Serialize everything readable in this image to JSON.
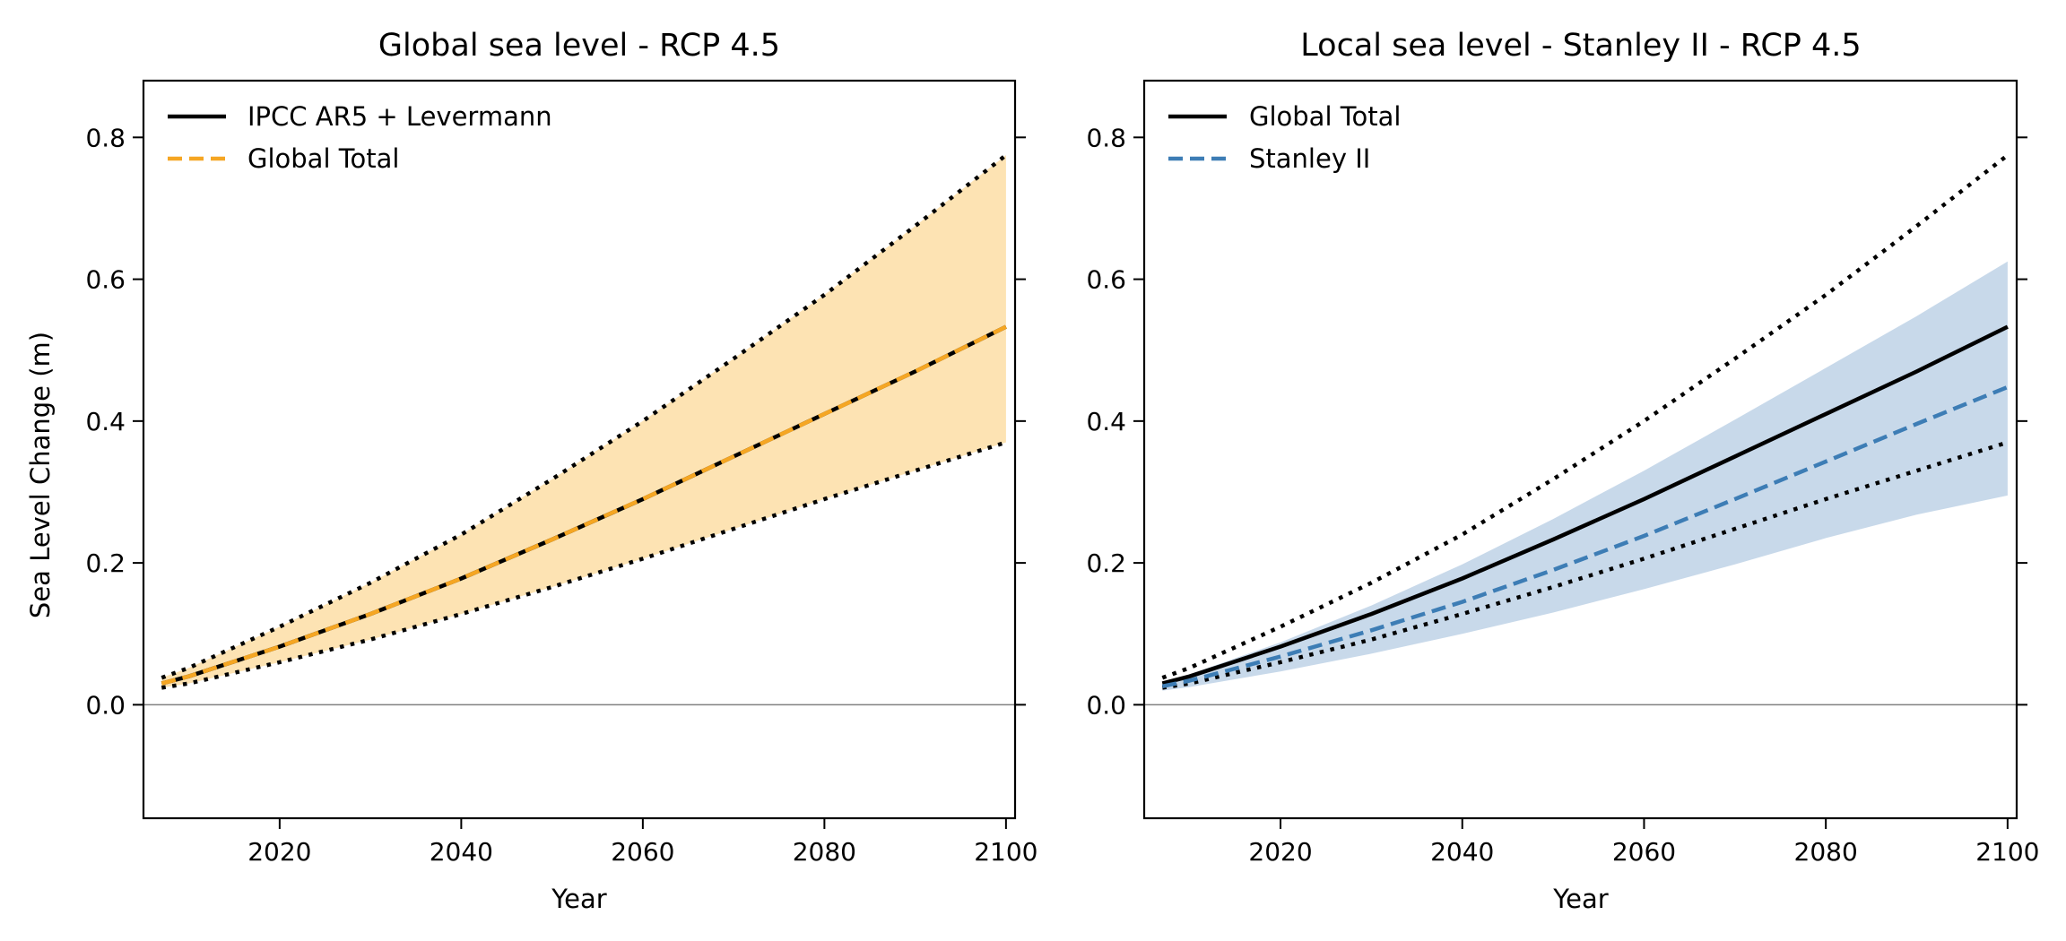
{
  "chart_data": [
    {
      "type": "line",
      "title": "Global sea level - RCP 4.5",
      "xlabel": "Year",
      "ylabel": "Sea Level Change (m)",
      "xlim": [
        2005,
        2101
      ],
      "ylim": [
        -0.16,
        0.88
      ],
      "xticks": [
        2020,
        2040,
        2060,
        2080,
        2100
      ],
      "yticks": [
        0.0,
        0.2,
        0.4,
        0.6,
        0.8
      ],
      "tick_labels_x": [
        "2020",
        "2040",
        "2060",
        "2080",
        "2100"
      ],
      "tick_labels_y": [
        "0.0",
        "0.2",
        "0.4",
        "0.6",
        "0.8"
      ],
      "legend_position": "top-left",
      "x": [
        2007,
        2010,
        2020,
        2030,
        2040,
        2050,
        2060,
        2070,
        2080,
        2090,
        2100
      ],
      "series": [
        {
          "name": "IPCC AR5 + Levermann",
          "color": "#000000",
          "style": "solid",
          "values": [
            0.03,
            0.04,
            0.082,
            0.128,
            0.178,
            0.233,
            0.29,
            0.35,
            0.41,
            0.47,
            0.533
          ]
        },
        {
          "name": "Global Total",
          "color": "#f5a623",
          "style": "dashed",
          "values": [
            0.03,
            0.04,
            0.082,
            0.128,
            0.178,
            0.233,
            0.29,
            0.35,
            0.41,
            0.47,
            0.533
          ]
        },
        {
          "style": "dotted",
          "color": "#000000",
          "values": [
            0.038,
            0.052,
            0.11,
            0.172,
            0.24,
            0.318,
            0.4,
            0.488,
            0.578,
            0.675,
            0.775
          ]
        },
        {
          "style": "dotted",
          "color": "#000000",
          "values": [
            0.024,
            0.03,
            0.06,
            0.092,
            0.128,
            0.166,
            0.206,
            0.248,
            0.29,
            0.33,
            0.37
          ]
        }
      ],
      "band": {
        "color": "#fde3b3",
        "lower": [
          0.024,
          0.03,
          0.06,
          0.092,
          0.128,
          0.166,
          0.206,
          0.248,
          0.29,
          0.33,
          0.37
        ],
        "upper": [
          0.038,
          0.052,
          0.11,
          0.172,
          0.24,
          0.318,
          0.4,
          0.488,
          0.578,
          0.675,
          0.775
        ]
      }
    },
    {
      "type": "line",
      "title": "Local sea level - Stanley II - RCP 4.5",
      "xlabel": "Year",
      "ylabel": "",
      "xlim": [
        2005,
        2101
      ],
      "ylim": [
        -0.16,
        0.88
      ],
      "xticks": [
        2020,
        2040,
        2060,
        2080,
        2100
      ],
      "yticks": [
        0.0,
        0.2,
        0.4,
        0.6,
        0.8
      ],
      "tick_labels_x": [
        "2020",
        "2040",
        "2060",
        "2080",
        "2100"
      ],
      "tick_labels_y": [
        "0.0",
        "0.2",
        "0.4",
        "0.6",
        "0.8"
      ],
      "legend_position": "top-left",
      "x": [
        2007,
        2010,
        2020,
        2030,
        2040,
        2050,
        2060,
        2070,
        2080,
        2090,
        2100
      ],
      "series": [
        {
          "name": "Global Total",
          "color": "#000000",
          "style": "solid",
          "values": [
            0.03,
            0.04,
            0.082,
            0.128,
            0.178,
            0.233,
            0.29,
            0.35,
            0.41,
            0.47,
            0.533
          ]
        },
        {
          "name": "Stanley II",
          "color": "#3d7db5",
          "style": "dashed",
          "values": [
            0.026,
            0.034,
            0.068,
            0.105,
            0.145,
            0.19,
            0.238,
            0.29,
            0.343,
            0.396,
            0.448
          ]
        },
        {
          "style": "dotted",
          "color": "#000000",
          "values": [
            0.038,
            0.052,
            0.11,
            0.172,
            0.24,
            0.318,
            0.4,
            0.488,
            0.578,
            0.675,
            0.775
          ]
        },
        {
          "style": "dotted",
          "color": "#000000",
          "values": [
            0.024,
            0.03,
            0.06,
            0.092,
            0.128,
            0.166,
            0.206,
            0.248,
            0.29,
            0.33,
            0.37
          ]
        }
      ],
      "band": {
        "color": "#c8d9ea",
        "lower": [
          0.02,
          0.025,
          0.047,
          0.072,
          0.1,
          0.13,
          0.163,
          0.198,
          0.235,
          0.268,
          0.295
        ],
        "upper": [
          0.032,
          0.043,
          0.088,
          0.14,
          0.198,
          0.262,
          0.33,
          0.402,
          0.475,
          0.548,
          0.625
        ]
      }
    }
  ]
}
